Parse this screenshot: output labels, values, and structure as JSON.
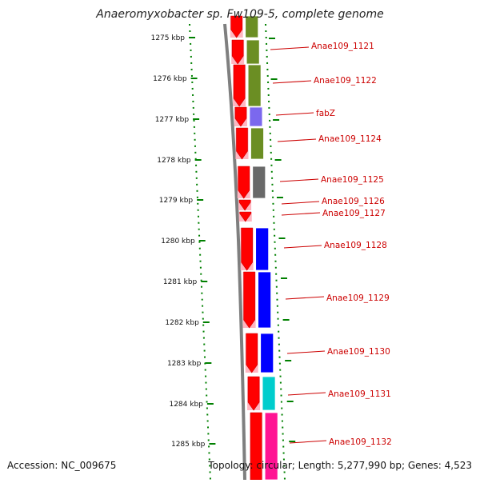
{
  "title": "Anaeromyxobacter sp. Fw109-5, complete genome",
  "accession_text": "Accession: NC_009675",
  "topology_text": "Topology: circular; Length: 5,277,990 bp; Genes: 4,523",
  "kbp_labels": [
    "1275 kbp",
    "1276 kbp",
    "1277 kbp",
    "1278 kbp",
    "1279 kbp",
    "1280 kbp",
    "1281 kbp",
    "1282 kbp",
    "1283 kbp",
    "1284 kbp",
    "1285 kbp"
  ],
  "genes": [
    {
      "label": "",
      "color": "#6b8e23"
    },
    {
      "label": "Anae109_1121",
      "color": "#6b8e23"
    },
    {
      "label": "Anae109_1122",
      "color": "#6b8e23"
    },
    {
      "label": "fabZ",
      "color": "#7b68ee"
    },
    {
      "label": "Anae109_1124",
      "color": "#6b8e23"
    },
    {
      "label": "Anae109_1125",
      "color": "#696969"
    },
    {
      "label": "Anae109_1126",
      "color": "#ffffff"
    },
    {
      "label": "Anae109_1127",
      "color": "#ffffff"
    },
    {
      "label": "Anae109_1128",
      "color": "#0000ff"
    },
    {
      "label": "Anae109_1129",
      "color": "#0000ff"
    },
    {
      "label": "Anae109_1130",
      "color": "#0000ff"
    },
    {
      "label": "Anae109_1131",
      "color": "#00cdcd"
    },
    {
      "label": "Anae109_1132",
      "color": "#ff1493"
    }
  ],
  "colors": {
    "gene_arrow": "#ff0000",
    "strand_band": "#ffb6c1",
    "label_text": "#cc0000",
    "tick_green": "#008000",
    "backbone": "#7f7f7f"
  }
}
